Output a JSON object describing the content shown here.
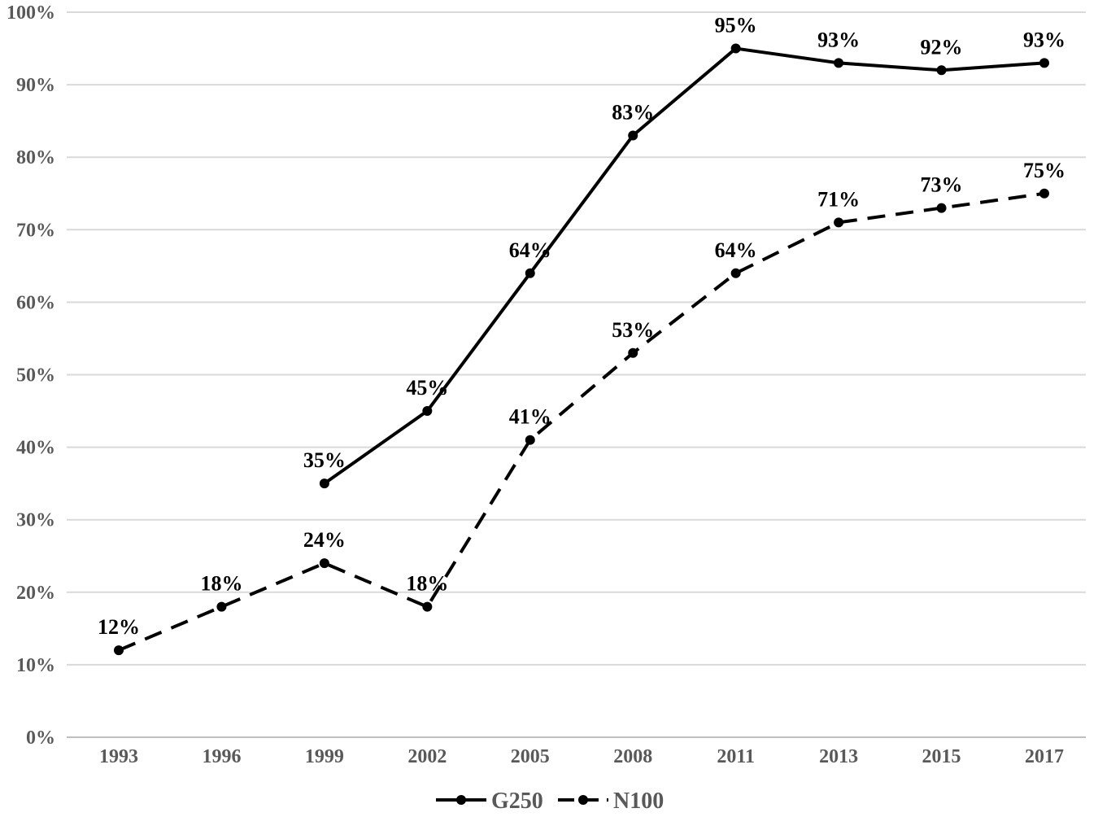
{
  "chart_data": {
    "type": "line",
    "categories": [
      "1993",
      "1996",
      "1999",
      "2002",
      "2005",
      "2008",
      "2011",
      "2013",
      "2015",
      "2017"
    ],
    "series": [
      {
        "name": "G250",
        "values": [
          null,
          null,
          35,
          45,
          64,
          83,
          95,
          93,
          92,
          93
        ],
        "labels": [
          null,
          null,
          "35%",
          "45%",
          "64%",
          "83%",
          "95%",
          "93%",
          "92%",
          "93%"
        ],
        "style": "solid",
        "color": "#000000"
      },
      {
        "name": "N100",
        "values": [
          12,
          18,
          24,
          18,
          41,
          53,
          64,
          71,
          73,
          75
        ],
        "labels": [
          "12%",
          "18%",
          "24%",
          "18%",
          "41%",
          "53%",
          "64%",
          "71%",
          "73%",
          "75%"
        ],
        "style": "dashed",
        "color": "#000000"
      }
    ],
    "yticks": [
      "0%",
      "10%",
      "20%",
      "30%",
      "40%",
      "50%",
      "60%",
      "70%",
      "80%",
      "90%",
      "100%"
    ],
    "ylim": [
      0,
      100
    ],
    "grid": true,
    "legend": "bottom",
    "colors": {
      "gridline": "#d9d9d9",
      "axis_text": "#595959",
      "series": "#000000"
    }
  }
}
